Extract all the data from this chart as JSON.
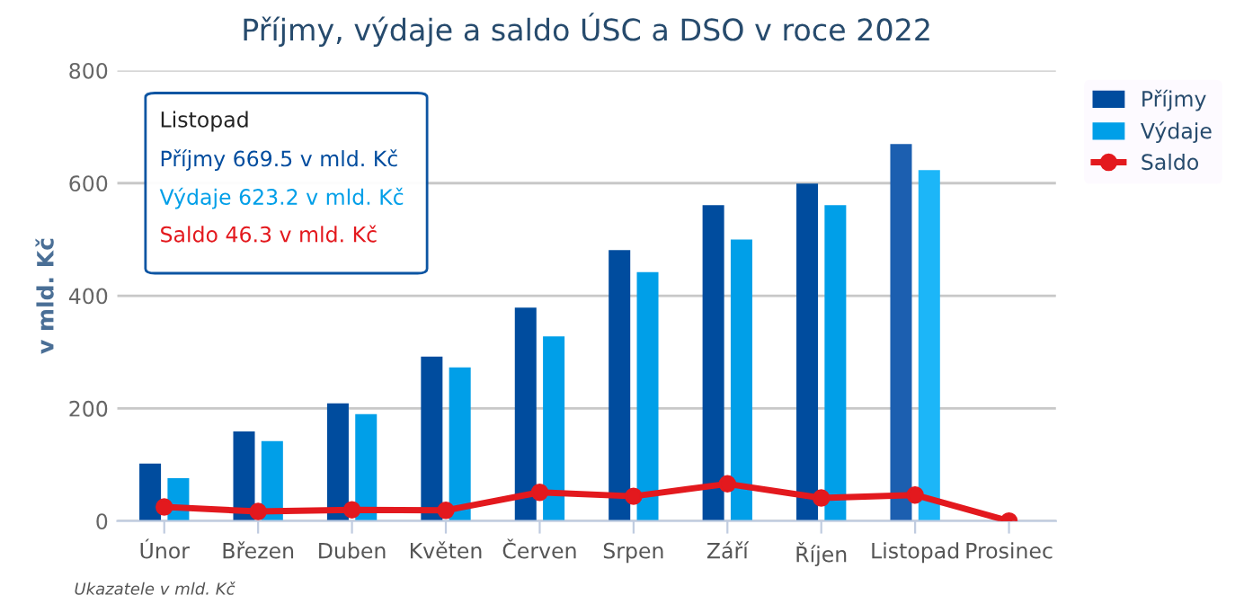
{
  "chart_data": {
    "type": "bar",
    "title": "Příjmy, výdaje a saldo ÚSC a DSO v roce 2022",
    "ylabel": "v mld. Kč",
    "categories": [
      "Únor",
      "Březen",
      "Duben",
      "Květen",
      "Červen",
      "Srpen",
      "Září",
      "Říjen",
      "Listopad",
      "Prosinec"
    ],
    "series": [
      {
        "name": "Příjmy",
        "color": "#004c9e",
        "colors": [
          "#004c9e",
          "#004c9e",
          "#004c9e",
          "#004c9e",
          "#004c9e",
          "#004c9e",
          "#004c9e",
          "#004c9e",
          "#1c5fb0",
          "#004c9e"
        ],
        "values": [
          102,
          159,
          209,
          292,
          379,
          481,
          561,
          599,
          669.5,
          null
        ]
      },
      {
        "name": "Výdaje",
        "color": "#009fe8",
        "colors": [
          "#009fe8",
          "#009fe8",
          "#009fe8",
          "#009fe8",
          "#009fe8",
          "#009fe8",
          "#009fe8",
          "#009fe8",
          "#1cb6f8",
          "#009fe8"
        ],
        "values": [
          76,
          142,
          190,
          273,
          328,
          442,
          500,
          561,
          623.2,
          null
        ]
      },
      {
        "name": "Saldo",
        "type": "line",
        "color": "#e3191e",
        "marker": "circle",
        "values": [
          25,
          17,
          20,
          19,
          51,
          44,
          66,
          41,
          46.3,
          0
        ]
      }
    ],
    "ylim": [
      0,
      800
    ],
    "yticks": [
      0,
      200,
      400,
      600,
      800
    ],
    "grid": "y",
    "legend": "top right",
    "annotations": [
      "Listopad",
      "Příjmy 669.5 v mld. Kč",
      "Výdaje 623.2 v mld. Kč",
      "Saldo 46.3 v mld. Kč",
      "Ukazatele v mld. Kč"
    ]
  }
}
